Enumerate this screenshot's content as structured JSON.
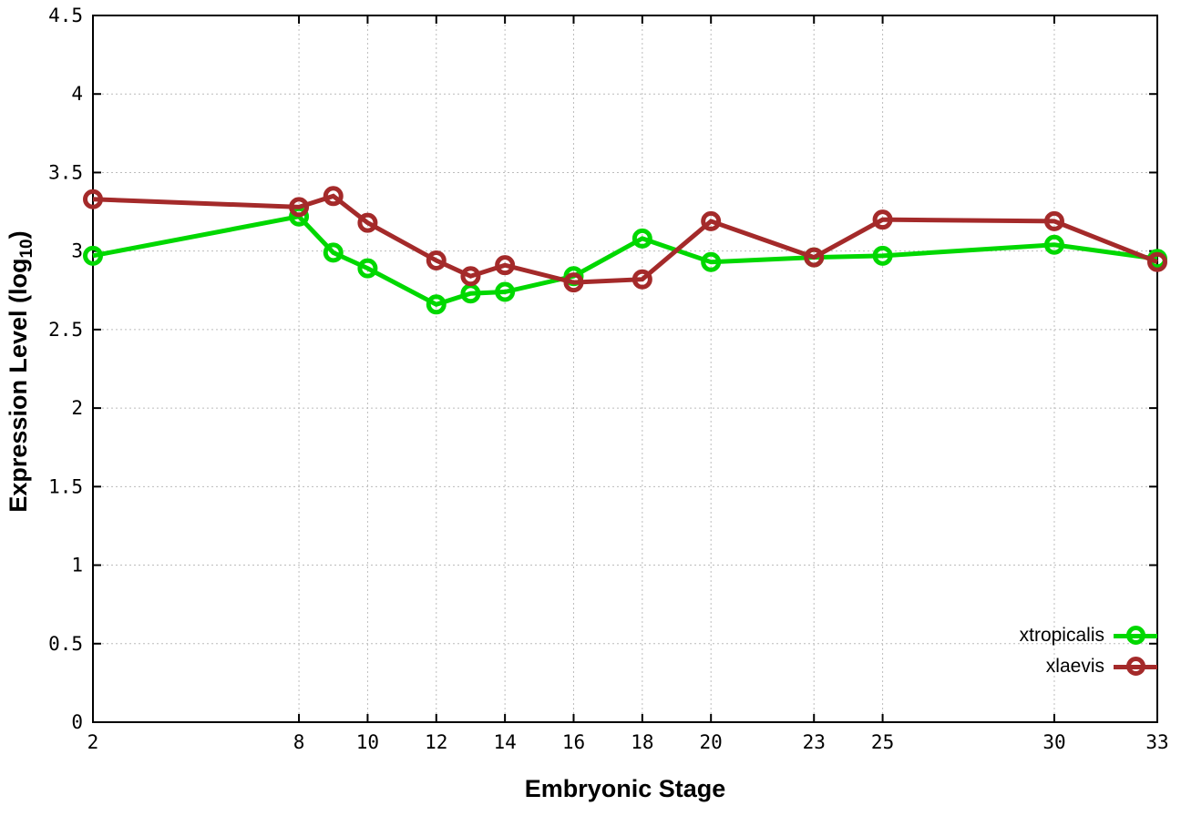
{
  "chart_data": {
    "type": "line",
    "title": "",
    "xlabel": "Embryonic Stage",
    "ylabel": "Expression Level (log10)",
    "ylabel_parts": {
      "main": "Expression Level (log",
      "sub": "10",
      "close": ")"
    },
    "x": [
      2,
      8,
      9,
      10,
      12,
      13,
      14,
      16,
      18,
      20,
      23,
      25,
      30,
      33
    ],
    "series": [
      {
        "name": "xtropicalis",
        "color": "#00d800",
        "values": [
          2.97,
          3.22,
          2.99,
          2.89,
          2.66,
          2.73,
          2.74,
          2.84,
          3.08,
          2.93,
          2.96,
          2.97,
          3.04,
          2.95
        ]
      },
      {
        "name": "xlaevis",
        "color": "#a42a2a",
        "values": [
          3.33,
          3.28,
          3.35,
          3.18,
          2.94,
          2.84,
          2.91,
          2.8,
          2.82,
          3.19,
          2.96,
          3.2,
          3.19,
          2.93
        ]
      }
    ],
    "xlim": [
      2,
      33
    ],
    "ylim": [
      0,
      4.5
    ],
    "x_ticks": [
      2,
      8,
      10,
      12,
      14,
      16,
      18,
      20,
      23,
      25,
      30,
      33
    ],
    "y_ticks": [
      0,
      0.5,
      1,
      1.5,
      2,
      2.5,
      3,
      3.5,
      4,
      4.5
    ],
    "grid": true,
    "legend_position": "bottom-right"
  },
  "colors": {
    "background": "#ffffff",
    "axis": "#000000",
    "grid": "#bcbcbc",
    "xtropicalis": "#00d800",
    "xlaevis": "#a42a2a"
  }
}
